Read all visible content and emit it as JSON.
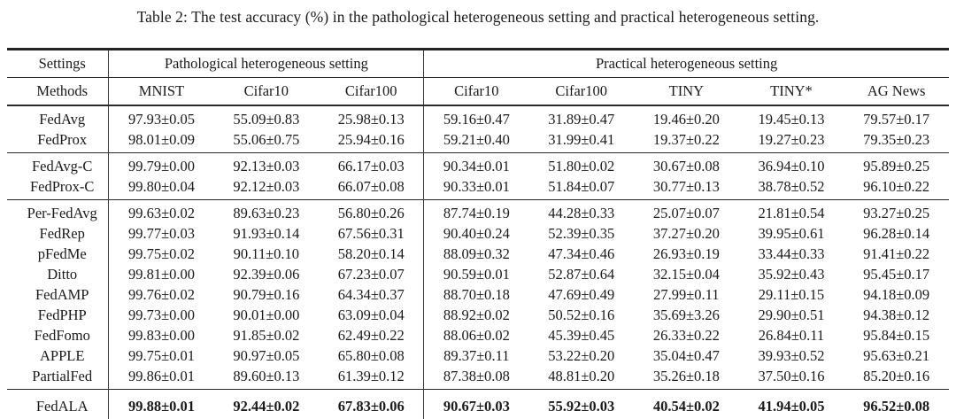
{
  "caption": {
    "text": "Table 2: The test accuracy (%) in the pathological heterogeneous setting and practical heterogeneous setting."
  },
  "table": {
    "settings_label": "Settings",
    "methods_label": "Methods",
    "groups": [
      {
        "label": "Pathological heterogeneous setting",
        "columns": [
          "MNIST",
          "Cifar10",
          "Cifar100"
        ]
      },
      {
        "label": "Practical heterogeneous setting",
        "columns": [
          "Cifar10",
          "Cifar100",
          "TINY",
          "TINY*",
          "AG News"
        ]
      }
    ],
    "sections": [
      {
        "bold": false,
        "rows": [
          {
            "method": "FedAvg",
            "values": [
              "97.93±0.05",
              "55.09±0.83",
              "25.98±0.13",
              "59.16±0.47",
              "31.89±0.47",
              "19.46±0.20",
              "19.45±0.13",
              "79.57±0.17"
            ]
          },
          {
            "method": "FedProx",
            "values": [
              "98.01±0.09",
              "55.06±0.75",
              "25.94±0.16",
              "59.21±0.40",
              "31.99±0.41",
              "19.37±0.22",
              "19.27±0.23",
              "79.35±0.23"
            ]
          }
        ]
      },
      {
        "bold": false,
        "rows": [
          {
            "method": "FedAvg-C",
            "values": [
              "99.79±0.00",
              "92.13±0.03",
              "66.17±0.03",
              "90.34±0.01",
              "51.80±0.02",
              "30.67±0.08",
              "36.94±0.10",
              "95.89±0.25"
            ]
          },
          {
            "method": "FedProx-C",
            "values": [
              "99.80±0.04",
              "92.12±0.03",
              "66.07±0.08",
              "90.33±0.01",
              "51.84±0.07",
              "30.77±0.13",
              "38.78±0.52",
              "96.10±0.22"
            ]
          }
        ]
      },
      {
        "bold": false,
        "rows": [
          {
            "method": "Per-FedAvg",
            "values": [
              "99.63±0.02",
              "89.63±0.23",
              "56.80±0.26",
              "87.74±0.19",
              "44.28±0.33",
              "25.07±0.07",
              "21.81±0.54",
              "93.27±0.25"
            ]
          },
          {
            "method": "FedRep",
            "values": [
              "99.77±0.03",
              "91.93±0.14",
              "67.56±0.31",
              "90.40±0.24",
              "52.39±0.35",
              "37.27±0.20",
              "39.95±0.61",
              "96.28±0.14"
            ]
          },
          {
            "method": "pFedMe",
            "values": [
              "99.75±0.02",
              "90.11±0.10",
              "58.20±0.14",
              "88.09±0.32",
              "47.34±0.46",
              "26.93±0.19",
              "33.44±0.33",
              "91.41±0.22"
            ]
          },
          {
            "method": "Ditto",
            "values": [
              "99.81±0.00",
              "92.39±0.06",
              "67.23±0.07",
              "90.59±0.01",
              "52.87±0.64",
              "32.15±0.04",
              "35.92±0.43",
              "95.45±0.17"
            ]
          },
          {
            "method": "FedAMP",
            "values": [
              "99.76±0.02",
              "90.79±0.16",
              "64.34±0.37",
              "88.70±0.18",
              "47.69±0.49",
              "27.99±0.11",
              "29.11±0.15",
              "94.18±0.09"
            ]
          },
          {
            "method": "FedPHP",
            "values": [
              "99.73±0.00",
              "90.01±0.00",
              "63.09±0.04",
              "88.92±0.02",
              "50.52±0.16",
              "35.69±3.26",
              "29.90±0.51",
              "94.38±0.12"
            ]
          },
          {
            "method": "FedFomo",
            "values": [
              "99.83±0.00",
              "91.85±0.02",
              "62.49±0.22",
              "88.06±0.02",
              "45.39±0.45",
              "26.33±0.22",
              "26.84±0.11",
              "95.84±0.15"
            ]
          },
          {
            "method": "APPLE",
            "values": [
              "99.75±0.01",
              "90.97±0.05",
              "65.80±0.08",
              "89.37±0.11",
              "53.22±0.20",
              "35.04±0.47",
              "39.93±0.52",
              "95.63±0.21"
            ]
          },
          {
            "method": "PartialFed",
            "values": [
              "99.86±0.01",
              "89.60±0.13",
              "61.39±0.12",
              "87.38±0.08",
              "48.81±0.20",
              "35.26±0.18",
              "37.50±0.16",
              "85.20±0.16"
            ]
          }
        ]
      },
      {
        "bold": true,
        "rows": [
          {
            "method": "FedALA",
            "values": [
              "99.88±0.01",
              "92.44±0.02",
              "67.83±0.06",
              "90.67±0.03",
              "55.92±0.03",
              "40.54±0.02",
              "41.94±0.05",
              "96.52±0.08"
            ]
          }
        ]
      }
    ]
  }
}
